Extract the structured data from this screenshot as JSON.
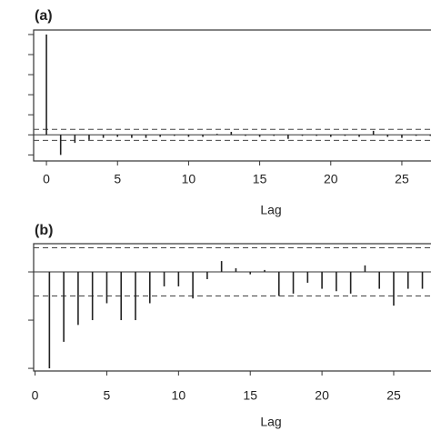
{
  "chart_data": [
    {
      "type": "stem",
      "panel_label": "(a)",
      "x_label": "Lag",
      "x": [
        0,
        1,
        2,
        3,
        4,
        5,
        6,
        7,
        8,
        9,
        10,
        11,
        12,
        13,
        14,
        15,
        16,
        17,
        18,
        19,
        20,
        21,
        22,
        23,
        24,
        25,
        26,
        27
      ],
      "values": [
        1,
        -0.2,
        -0.08,
        -0.05,
        -0.03,
        -0.02,
        -0.03,
        -0.03,
        -0.02,
        -0.01,
        -0.02,
        -0.02,
        0.01,
        0.03,
        -0.01,
        -0.02,
        -0.01,
        -0.04,
        -0.01,
        -0.01,
        -0.02,
        -0.01,
        -0.02,
        0.04,
        -0.02,
        -0.03,
        -0.01,
        -0.01
      ],
      "color": "#222222",
      "confidence_band": 0.055,
      "xlim": [
        -0.9,
        27.05
      ],
      "xticks": [
        0,
        5,
        10,
        15,
        20,
        25
      ],
      "ylim": [
        -0.26,
        1.045
      ],
      "yticks": [
        -0.2,
        0,
        0.2,
        0.4,
        0.6,
        0.8,
        1
      ]
    },
    {
      "type": "stem",
      "panel_label": "(b)",
      "x_label": "Lag",
      "x": [
        1,
        2,
        3,
        4,
        5,
        6,
        7,
        8,
        9,
        10,
        11,
        12,
        13,
        14,
        15,
        16,
        17,
        18,
        19,
        20,
        21,
        22,
        23,
        24,
        25,
        26,
        27
      ],
      "values": [
        -0.4,
        -0.29,
        -0.22,
        -0.2,
        -0.13,
        -0.2,
        -0.2,
        -0.13,
        -0.06,
        -0.06,
        -0.11,
        -0.03,
        0.045,
        0.015,
        -0.01,
        0.008,
        -0.1,
        -0.09,
        -0.045,
        -0.07,
        -0.08,
        -0.09,
        0.027,
        -0.07,
        -0.14,
        -0.07,
        -0.07
      ],
      "color": "#222222",
      "confidence_band": 0.1,
      "xlim": [
        -0.1,
        27.6
      ],
      "xticks": [
        0,
        5,
        10,
        15,
        20,
        25
      ],
      "ylim": [
        -0.411,
        0.117
      ],
      "yticks": [
        -0.4,
        -0.2,
        0
      ]
    }
  ]
}
